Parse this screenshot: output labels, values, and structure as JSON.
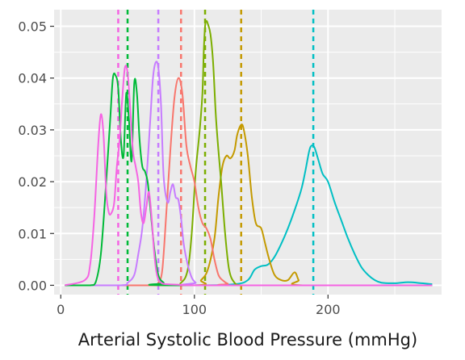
{
  "chart_data": {
    "type": "line",
    "title": "",
    "xlabel": "Arterial Systolic Blood Pressure (mmHg)",
    "ylabel": "",
    "xlim": [
      -5,
      285
    ],
    "ylim": [
      -0.0018,
      0.0532
    ],
    "x_ticks": [
      0,
      100,
      200
    ],
    "x_tick_labels": [
      "0",
      "100",
      "200"
    ],
    "y_ticks": [
      0,
      0.01,
      0.02,
      0.03,
      0.04,
      0.05
    ],
    "y_tick_labels": [
      "0.00",
      "0.01",
      "0.02",
      "0.03",
      "0.04",
      "0.05"
    ],
    "grid": true,
    "legend": "none",
    "series": [
      {
        "color": "#00bfc4",
        "median": 189,
        "x": [
          3,
          100,
          130,
          140,
          145,
          150,
          155,
          160,
          165,
          170,
          175,
          180,
          183,
          186,
          188,
          190,
          193,
          196,
          200,
          205,
          210,
          215,
          220,
          225,
          230,
          235,
          240,
          250,
          260,
          270,
          278
        ],
        "y": [
          0,
          0,
          0.0002,
          0.001,
          0.003,
          0.0037,
          0.004,
          0.0055,
          0.008,
          0.011,
          0.0145,
          0.0185,
          0.022,
          0.026,
          0.027,
          0.0265,
          0.024,
          0.0215,
          0.02,
          0.016,
          0.0125,
          0.009,
          0.006,
          0.0035,
          0.002,
          0.001,
          0.0005,
          0.0004,
          0.0006,
          0.0004,
          0.0002
        ]
      },
      {
        "color": "#c49a00",
        "median": 135,
        "x": [
          3,
          100,
          105,
          110,
          115,
          118,
          121,
          124,
          127,
          130,
          132,
          135,
          137,
          140,
          143,
          146,
          150,
          153,
          156,
          160,
          165,
          170,
          175,
          178,
          181
        ],
        "y": [
          0,
          0,
          0.001,
          0.003,
          0.009,
          0.017,
          0.023,
          0.025,
          0.0245,
          0.026,
          0.029,
          0.031,
          0.03,
          0.025,
          0.017,
          0.012,
          0.011,
          0.008,
          0.005,
          0.002,
          0.001,
          0.001,
          0.0025,
          0.001,
          0
        ]
      },
      {
        "color": "#7cae00",
        "median": 108,
        "x": [
          3,
          80,
          90,
          95,
          98,
          101,
          104,
          106,
          107,
          108,
          109,
          110,
          112,
          114,
          116,
          118,
          120,
          123,
          126,
          130,
          135,
          145
        ],
        "y": [
          0,
          0,
          0.0005,
          0.003,
          0.01,
          0.022,
          0.03,
          0.037,
          0.045,
          0.05,
          0.051,
          0.0505,
          0.0485,
          0.043,
          0.033,
          0.026,
          0.02,
          0.01,
          0.003,
          0.0005,
          0,
          0
        ]
      },
      {
        "color": "#f8766d",
        "median": 90,
        "x": [
          3,
          70,
          73,
          76,
          79,
          82,
          85,
          88,
          91,
          94,
          97,
          100,
          103,
          106,
          109,
          112,
          115,
          118,
          121,
          125,
          130
        ],
        "y": [
          0,
          0,
          0.0005,
          0.003,
          0.014,
          0.026,
          0.036,
          0.04,
          0.037,
          0.027,
          0.023,
          0.02,
          0.015,
          0.012,
          0.011,
          0.009,
          0.005,
          0.002,
          0.001,
          0.0003,
          0
        ]
      },
      {
        "color": "#c77cff",
        "median": 73,
        "x": [
          3,
          45,
          50,
          55,
          58,
          61,
          64,
          67,
          69,
          71,
          73,
          75,
          77,
          80,
          82,
          84,
          86,
          88,
          90,
          92,
          95,
          98,
          101,
          105
        ],
        "y": [
          0,
          0,
          0.0005,
          0.002,
          0.006,
          0.011,
          0.02,
          0.032,
          0.04,
          0.043,
          0.042,
          0.035,
          0.021,
          0.016,
          0.018,
          0.0195,
          0.017,
          0.0165,
          0.013,
          0.008,
          0.004,
          0.0015,
          0.0005,
          0
        ]
      },
      {
        "color": "#00ba38",
        "median": 50,
        "x": [
          3,
          22,
          26,
          30,
          34,
          37,
          39,
          41,
          43,
          45,
          47,
          49,
          51,
          53,
          55,
          57,
          59,
          61,
          63,
          65,
          67,
          70,
          73,
          77,
          82
        ],
        "y": [
          0,
          0,
          0.0005,
          0.006,
          0.02,
          0.032,
          0.04,
          0.0405,
          0.038,
          0.028,
          0.025,
          0.037,
          0.032,
          0.024,
          0.039,
          0.037,
          0.028,
          0.023,
          0.022,
          0.02,
          0.015,
          0.007,
          0.002,
          0.0005,
          0
        ]
      },
      {
        "color": "#f564e3",
        "median": 43,
        "x": [
          3,
          18,
          22,
          25,
          28,
          30,
          32,
          34,
          36,
          38,
          40,
          42,
          44,
          46,
          48,
          50,
          52,
          54,
          56,
          58,
          60,
          62,
          64,
          66,
          68,
          70,
          72,
          75,
          80,
          90,
          100,
          200,
          278
        ],
        "y": [
          0,
          0.001,
          0.004,
          0.013,
          0.027,
          0.033,
          0.029,
          0.018,
          0.014,
          0.014,
          0.016,
          0.023,
          0.028,
          0.036,
          0.042,
          0.041,
          0.034,
          0.026,
          0.023,
          0.02,
          0.014,
          0.012,
          0.015,
          0.018,
          0.013,
          0.006,
          0.002,
          0.0005,
          0.0002,
          0.0001,
          0,
          0,
          0
        ]
      }
    ]
  }
}
